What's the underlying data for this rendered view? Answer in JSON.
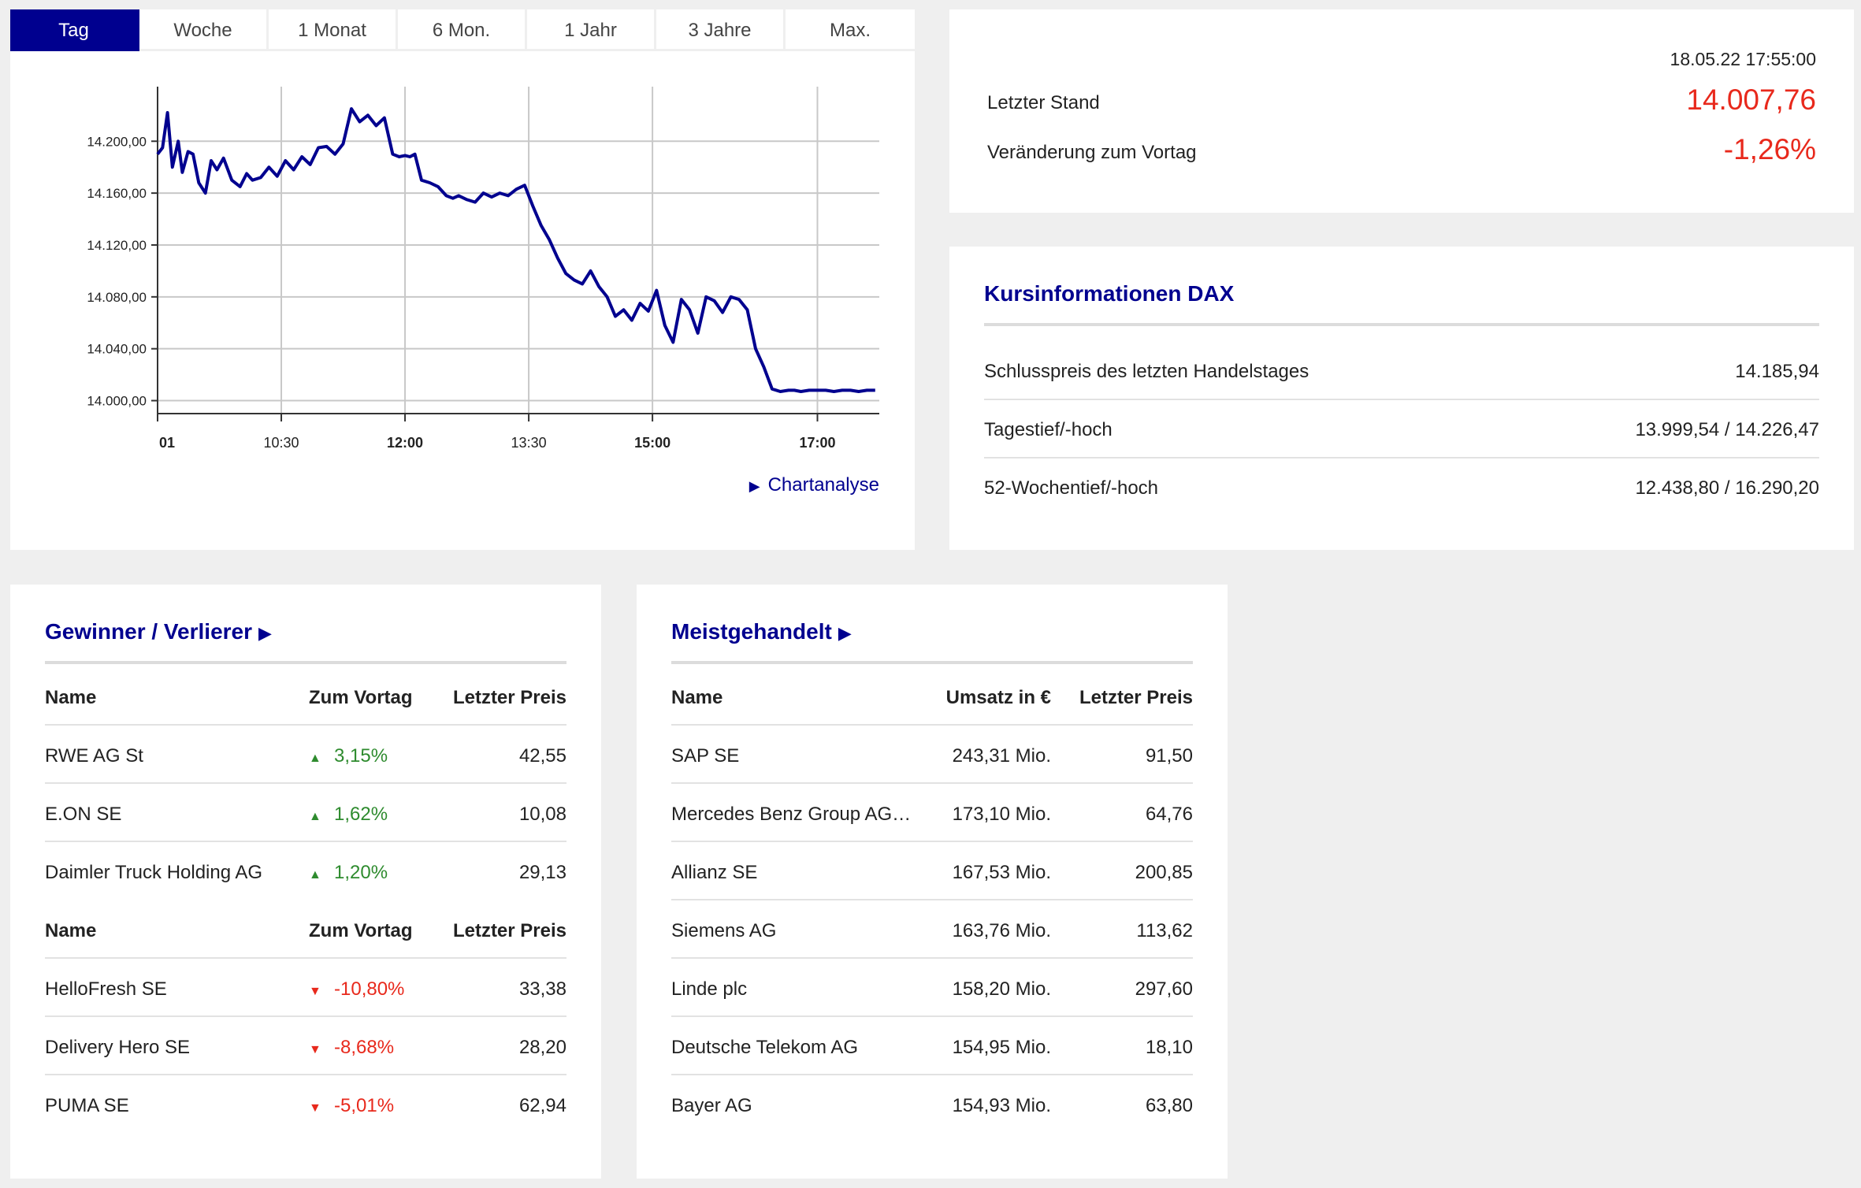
{
  "range_tabs": [
    "Tag",
    "Woche",
    "1 Monat",
    "6 Mon.",
    "1 Jahr",
    "3 Jahre",
    "Max."
  ],
  "active_tab": "Tag",
  "chart_link": "Chartanalyse",
  "chart_data": {
    "type": "line",
    "title": "",
    "y_ticks": [
      "14.200,00",
      "14.160,00",
      "14.120,00",
      "14.080,00",
      "14.040,00",
      "14.000,00"
    ],
    "ylim": [
      13990,
      14236
    ],
    "x_ticks": [
      {
        "label": "01",
        "t": 9.0,
        "bold": true
      },
      {
        "label": "10:30",
        "t": 10.5,
        "bold": false
      },
      {
        "label": "12:00",
        "t": 12.0,
        "bold": true
      },
      {
        "label": "13:30",
        "t": 13.5,
        "bold": false
      },
      {
        "label": "15:00",
        "t": 15.0,
        "bold": true
      },
      {
        "label": "17:00",
        "t": 17.0,
        "bold": true
      }
    ],
    "xlim": [
      9.0,
      17.75
    ],
    "grid": true,
    "series_color": "#00008f",
    "series": [
      {
        "x": [
          9.0,
          9.06,
          9.12,
          9.18,
          9.25,
          9.3,
          9.37,
          9.43,
          9.5,
          9.58,
          9.65,
          9.72,
          9.8,
          9.9,
          10.0,
          10.08,
          10.15,
          10.25,
          10.35,
          10.45,
          10.55,
          10.65,
          10.75,
          10.85,
          10.95,
          11.05,
          11.15,
          11.25,
          11.35,
          11.45,
          11.55,
          11.65,
          11.75,
          11.85,
          11.93,
          12.0,
          12.06,
          12.12,
          12.2,
          12.3,
          12.4,
          12.5,
          12.58,
          12.65,
          12.75,
          12.85,
          12.95,
          13.05,
          13.15,
          13.25,
          13.35,
          13.45,
          13.55,
          13.65,
          13.75,
          13.85,
          13.95,
          14.05,
          14.15,
          14.25,
          14.35,
          14.45,
          14.55,
          14.65,
          14.75,
          14.85,
          14.95,
          15.05,
          15.15,
          15.25,
          15.35,
          15.45,
          15.55,
          15.65,
          15.75,
          15.85,
          15.95,
          16.05,
          16.15,
          16.25,
          16.35,
          16.45,
          16.55,
          16.65,
          16.72,
          16.8,
          16.9,
          17.0,
          17.1,
          17.2,
          17.3,
          17.4,
          17.5,
          17.6,
          17.7
        ],
        "y": [
          14190,
          14195,
          14222,
          14180,
          14200,
          14176,
          14192,
          14190,
          14168,
          14160,
          14185,
          14178,
          14187,
          14170,
          14165,
          14175,
          14170,
          14172,
          14180,
          14173,
          14185,
          14178,
          14188,
          14182,
          14195,
          14196,
          14190,
          14198,
          14225,
          14215,
          14220,
          14212,
          14218,
          14190,
          14188,
          14189,
          14188,
          14190,
          14170,
          14168,
          14165,
          14158,
          14156,
          14158,
          14155,
          14153,
          14160,
          14157,
          14160,
          14158,
          14163,
          14166,
          14150,
          14135,
          14124,
          14110,
          14098,
          14093,
          14090,
          14100,
          14088,
          14080,
          14065,
          14070,
          14062,
          14075,
          14069,
          14085,
          14058,
          14045,
          14078,
          14070,
          14052,
          14080,
          14077,
          14068,
          14080,
          14078,
          14070,
          14040,
          14026,
          14009,
          14007,
          14008,
          14008,
          14007,
          14008,
          14008,
          14008,
          14007,
          14008,
          14008,
          14007,
          14008,
          14008
        ],
        "raw_hint": "approximate intraday DAX path read from chart"
      }
    ]
  },
  "quote": {
    "timestamp": "18.05.22 17:55:00",
    "last_label": "Letzter Stand",
    "last_value": "14.007,76",
    "change_label": "Veränderung zum Vortag",
    "change_value": "-1,26%"
  },
  "info": {
    "title": "Kursinformationen DAX",
    "rows": [
      {
        "label": "Schlusspreis des letzten Handelstages",
        "value": "14.185,94"
      },
      {
        "label": "Tagestief/-hoch",
        "value": "13.999,54 / 14.226,47"
      },
      {
        "label": "52-Wochentief/-hoch",
        "value": "12.438,80 / 16.290,20"
      }
    ]
  },
  "gainers_losers": {
    "title": "Gewinner / Verlierer",
    "header": {
      "name": "Name",
      "change": "Zum Vortag",
      "price": "Letzter Preis"
    },
    "gainers": [
      {
        "name": "RWE AG St",
        "change": "3,15%",
        "price": "42,55"
      },
      {
        "name": "E.ON SE",
        "change": "1,62%",
        "price": "10,08"
      },
      {
        "name": "Daimler Truck Holding AG",
        "change": "1,20%",
        "price": "29,13"
      }
    ],
    "losers": [
      {
        "name": "HelloFresh SE",
        "change": "-10,80%",
        "price": "33,38"
      },
      {
        "name": "Delivery Hero SE",
        "change": "-8,68%",
        "price": "28,20"
      },
      {
        "name": "PUMA SE",
        "change": "-5,01%",
        "price": "62,94"
      }
    ]
  },
  "most_traded": {
    "title": "Meistgehandelt",
    "header": {
      "name": "Name",
      "volume": "Umsatz in €",
      "price": "Letzter Preis"
    },
    "rows": [
      {
        "name": "SAP SE",
        "volume": "243,31 Mio.",
        "price": "91,50"
      },
      {
        "name": "Mercedes Benz Group AG…",
        "volume": "173,10 Mio.",
        "price": "64,76"
      },
      {
        "name": "Allianz SE",
        "volume": "167,53 Mio.",
        "price": "200,85"
      },
      {
        "name": "Siemens AG",
        "volume": "163,76 Mio.",
        "price": "113,62"
      },
      {
        "name": "Linde plc",
        "volume": "158,20 Mio.",
        "price": "297,60"
      },
      {
        "name": "Deutsche Telekom AG",
        "volume": "154,95 Mio.",
        "price": "18,10"
      },
      {
        "name": "Bayer AG",
        "volume": "154,93 Mio.",
        "price": "63,80"
      }
    ]
  },
  "colors": {
    "accent": "#00008f",
    "up": "#2e8b2e",
    "down": "#e8291c"
  },
  "icons": {
    "up": "triangle-up-icon",
    "down": "triangle-down-icon",
    "link": "play-arrow-icon"
  }
}
